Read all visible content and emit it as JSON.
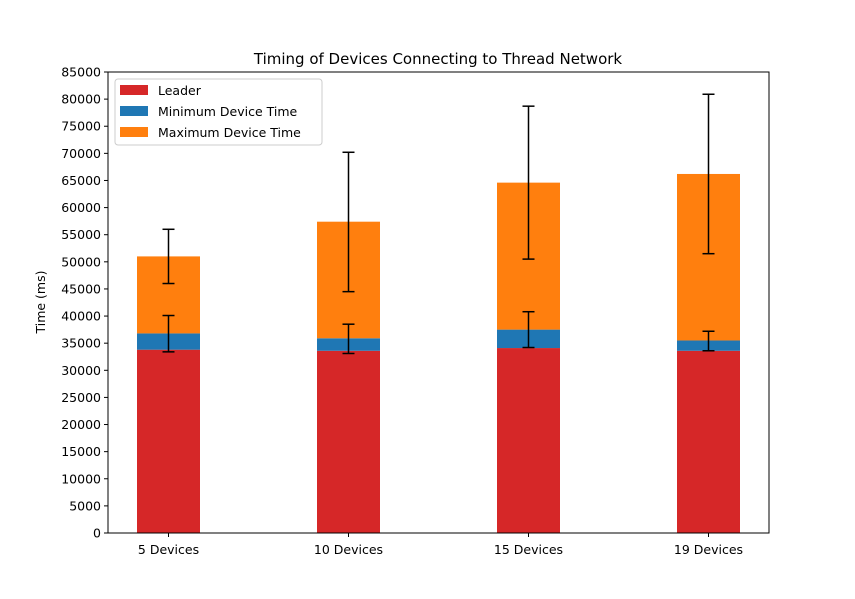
{
  "chart_data": {
    "type": "bar",
    "stacked": true,
    "title": "Timing of Devices Connecting to Thread Network",
    "xlabel": "",
    "ylabel": "Time (ms)",
    "categories": [
      "5 Devices",
      "10 Devices",
      "15 Devices",
      "19 Devices"
    ],
    "ylim": [
      0,
      85000
    ],
    "yticks": [
      0,
      5000,
      10000,
      15000,
      20000,
      25000,
      30000,
      35000,
      40000,
      45000,
      50000,
      55000,
      60000,
      65000,
      70000,
      75000,
      80000,
      85000
    ],
    "grid": false,
    "legend_position": "top-left",
    "series": [
      {
        "name": "Leader",
        "color": "#d62728",
        "bottom": [
          0,
          0,
          0,
          0
        ],
        "top": [
          33800,
          33600,
          34100,
          33600
        ]
      },
      {
        "name": "Minimum Device Time",
        "color": "#1f77b4",
        "bottom": [
          33800,
          33600,
          34100,
          33600
        ],
        "top": [
          36800,
          35900,
          37500,
          35500
        ],
        "error": [
          [
            33400,
            40100
          ],
          [
            33100,
            38500
          ],
          [
            34200,
            40800
          ],
          [
            33600,
            37200
          ]
        ]
      },
      {
        "name": "Maximum Device Time",
        "color": "#ff7f0e",
        "bottom": [
          36800,
          35900,
          37500,
          35500
        ],
        "top": [
          51000,
          57400,
          64600,
          66200
        ],
        "error": [
          [
            46000,
            56000
          ],
          [
            44500,
            70200
          ],
          [
            50500,
            78700
          ],
          [
            51500,
            80900
          ]
        ]
      }
    ]
  }
}
